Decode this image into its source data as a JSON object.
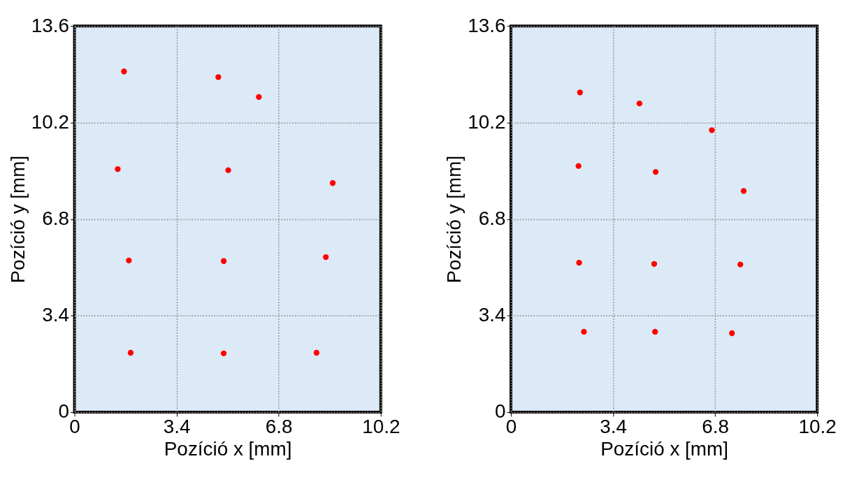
{
  "chart_data": [
    {
      "type": "scatter",
      "xlabel": "Pozíció x [mm]",
      "ylabel": "Pozíció y [mm]",
      "marker": "circle",
      "grid": true,
      "xlim": [
        0,
        10.2
      ],
      "ylim": [
        0,
        13.6
      ],
      "xticks": [
        0,
        3.4,
        6.8,
        10.2
      ],
      "yticks": [
        0,
        3.4,
        6.8,
        10.2,
        13.6
      ],
      "series": [
        {
          "color": "#ff0000",
          "x": [
            1.65,
            4.79,
            6.14,
            1.44,
            5.12,
            8.6,
            1.81,
            4.97,
            8.37,
            1.87,
            4.97,
            8.06
          ],
          "values": [
            12.0,
            11.8,
            11.1,
            8.56,
            8.52,
            8.07,
            5.34,
            5.32,
            5.46,
            2.09,
            2.07,
            2.09
          ]
        }
      ]
    },
    {
      "type": "scatter",
      "xlabel": "Pozíció x [mm]",
      "ylabel": "Pozíció y [mm]",
      "marker": "circle",
      "grid": true,
      "xlim": [
        0,
        10.2
      ],
      "ylim": [
        0,
        13.6
      ],
      "xticks": [
        0,
        3.4,
        6.8,
        10.2
      ],
      "yticks": [
        0,
        3.4,
        6.8,
        10.2,
        13.6
      ],
      "series": [
        {
          "color": "#ff0000",
          "x": [
            2.3,
            4.28,
            6.69,
            2.25,
            4.82,
            7.75,
            2.27,
            4.77,
            7.64,
            2.43,
            4.8,
            7.36
          ],
          "values": [
            11.26,
            10.87,
            9.93,
            8.67,
            8.46,
            7.79,
            5.26,
            5.22,
            5.2,
            2.83,
            2.83,
            2.78
          ]
        }
      ]
    }
  ]
}
